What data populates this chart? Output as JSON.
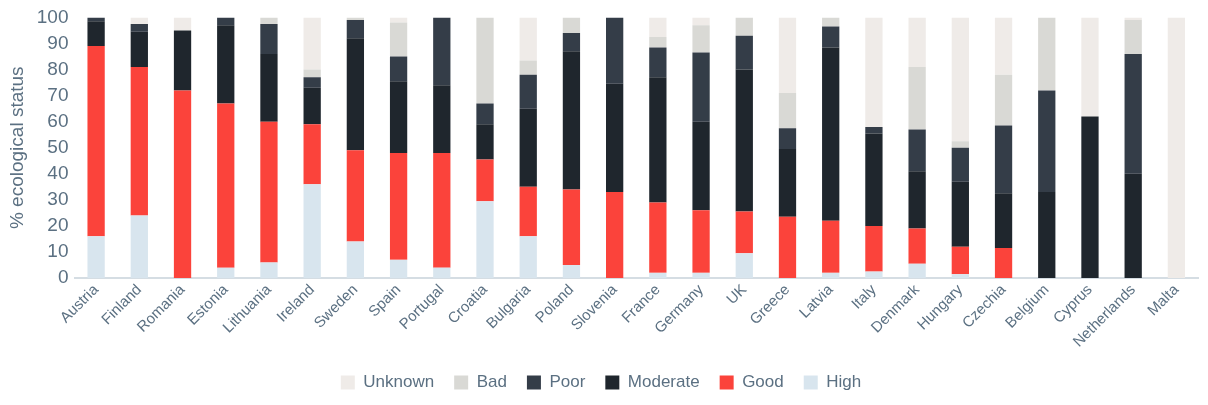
{
  "chart_data": {
    "type": "bar",
    "stacked": true,
    "ylabel": "% ecological status",
    "categories": [
      "Austria",
      "Finland",
      "Romania",
      "Estonia",
      "Lithuania",
      "Ireland",
      "Sweden",
      "Spain",
      "Portugal",
      "Croatia",
      "Bulgaria",
      "Poland",
      "Slovenia",
      "France",
      "Germany",
      "UK",
      "Greece",
      "Latvia",
      "Italy",
      "Denmark",
      "Hungary",
      "Czechia",
      "Belgium",
      "Cyprus",
      "Netherlands",
      "Malta"
    ],
    "series": [
      {
        "name": "High",
        "color": "#d8e5ee",
        "values": [
          16,
          24,
          0,
          4,
          6,
          36,
          14,
          7,
          4,
          29.5,
          16,
          5,
          0,
          2,
          2,
          9.5,
          0,
          2,
          2.5,
          5.5,
          1.5,
          0,
          0,
          0,
          0,
          0
        ]
      },
      {
        "name": "Good",
        "color": "#fb433b",
        "values": [
          73,
          57,
          72,
          63,
          54,
          23,
          35,
          41,
          44,
          16,
          19,
          29,
          33,
          27,
          24,
          16,
          23.5,
          20,
          17.5,
          13.5,
          10.5,
          11.5,
          0,
          0,
          0,
          0
        ]
      },
      {
        "name": "Moderate",
        "color": "#1f262d",
        "values": [
          9.5,
          13.5,
          23,
          30,
          26,
          14,
          43,
          27.5,
          26,
          13.5,
          30,
          53,
          41.5,
          48,
          34,
          54.5,
          26,
          66.5,
          35.5,
          22,
          25,
          21,
          33,
          62,
          40,
          0
        ]
      },
      {
        "name": "Poor",
        "color": "#343d48",
        "values": [
          1.5,
          3,
          0,
          3,
          11.5,
          4,
          7,
          9.5,
          26,
          8,
          13,
          7,
          25.5,
          11.5,
          26.5,
          13,
          8,
          8,
          2.5,
          16,
          13,
          26,
          39,
          0,
          46,
          0
        ]
      },
      {
        "name": "Bad",
        "color": "#d9d9d5",
        "values": [
          0,
          0,
          0,
          0,
          2.5,
          3,
          1,
          13,
          0,
          33,
          5.5,
          6,
          0,
          4,
          10.5,
          7,
          13.5,
          3.5,
          0,
          24,
          2.5,
          19.5,
          28,
          0,
          13,
          0
        ]
      },
      {
        "name": "Unknown",
        "color": "#efebe8",
        "values": [
          0,
          2.5,
          5,
          0,
          0,
          20,
          0,
          2,
          0,
          0,
          16.5,
          0,
          0,
          7.5,
          3,
          0,
          29,
          0,
          42,
          19,
          47.5,
          22,
          0,
          38,
          1,
          100
        ]
      }
    ],
    "ylim": [
      0,
      100
    ],
    "yticks": [
      0,
      10,
      20,
      30,
      40,
      50,
      60,
      70,
      80,
      90,
      100
    ],
    "grid": false,
    "legend": "bottom"
  }
}
